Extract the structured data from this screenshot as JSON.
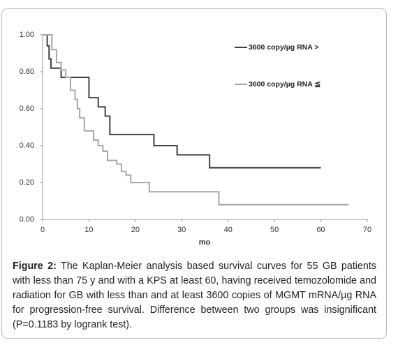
{
  "chart_data": {
    "type": "line",
    "xlabel": "mo",
    "xlim": [
      0,
      70
    ],
    "xticks": [
      0,
      10,
      20,
      30,
      40,
      50,
      60,
      70
    ],
    "ylim": [
      0,
      1
    ],
    "yticks": [
      {
        "value": 0,
        "label": "0.00"
      },
      {
        "value": 0.2,
        "label": "0.20"
      },
      {
        "value": 0.4,
        "label": "0.40"
      },
      {
        "value": 0.6,
        "label": "0.60"
      },
      {
        "value": 0.8,
        "label": "0.80"
      },
      {
        "value": 1,
        "label": "1.00"
      }
    ],
    "series": [
      {
        "name": "3600 copy/µg RNA >",
        "color": "#404040",
        "x": [
          0,
          1,
          1,
          1.4,
          1.4,
          1.8,
          1.8,
          4,
          4,
          10,
          10,
          12,
          12,
          13.5,
          13.5,
          14.5,
          14.5,
          24,
          24,
          29,
          29,
          36,
          36,
          60
        ],
        "values": [
          1,
          1,
          0.94,
          0.94,
          0.87,
          0.87,
          0.82,
          0.82,
          0.77,
          0.77,
          0.66,
          0.66,
          0.61,
          0.61,
          0.56,
          0.56,
          0.46,
          0.46,
          0.4,
          0.4,
          0.35,
          0.35,
          0.28,
          0.28
        ]
      },
      {
        "name": "3600 copy/µg RNA ≦",
        "color": "#a6a6a6",
        "x": [
          0,
          2,
          2,
          3,
          3,
          4,
          4,
          5,
          5,
          6,
          6,
          7,
          7,
          7.5,
          7.5,
          8,
          8,
          9,
          9,
          11,
          11,
          12,
          12,
          13,
          13,
          14,
          14,
          16,
          16,
          17,
          17,
          18,
          18,
          19,
          19,
          23,
          23,
          38,
          38,
          66
        ],
        "values": [
          1,
          1,
          0.92,
          0.92,
          0.85,
          0.85,
          0.81,
          0.81,
          0.77,
          0.77,
          0.7,
          0.7,
          0.65,
          0.65,
          0.6,
          0.6,
          0.55,
          0.55,
          0.48,
          0.48,
          0.43,
          0.43,
          0.4,
          0.4,
          0.37,
          0.37,
          0.32,
          0.32,
          0.3,
          0.3,
          0.26,
          0.26,
          0.24,
          0.24,
          0.2,
          0.2,
          0.15,
          0.15,
          0.08,
          0.08
        ]
      }
    ],
    "caption_label": "Figure 2:",
    "caption": "The Kaplan-Meier analysis based survival curves for 55 GB patients with less than 75 y and with a KPS at least 60, having received temozolomide and radiation for GB with less than and at least 3600 copies of MGMT mRNA/µg RNA for progression-free survival. Difference between two groups was insignificant (P=0.1183 by logrank test)."
  }
}
